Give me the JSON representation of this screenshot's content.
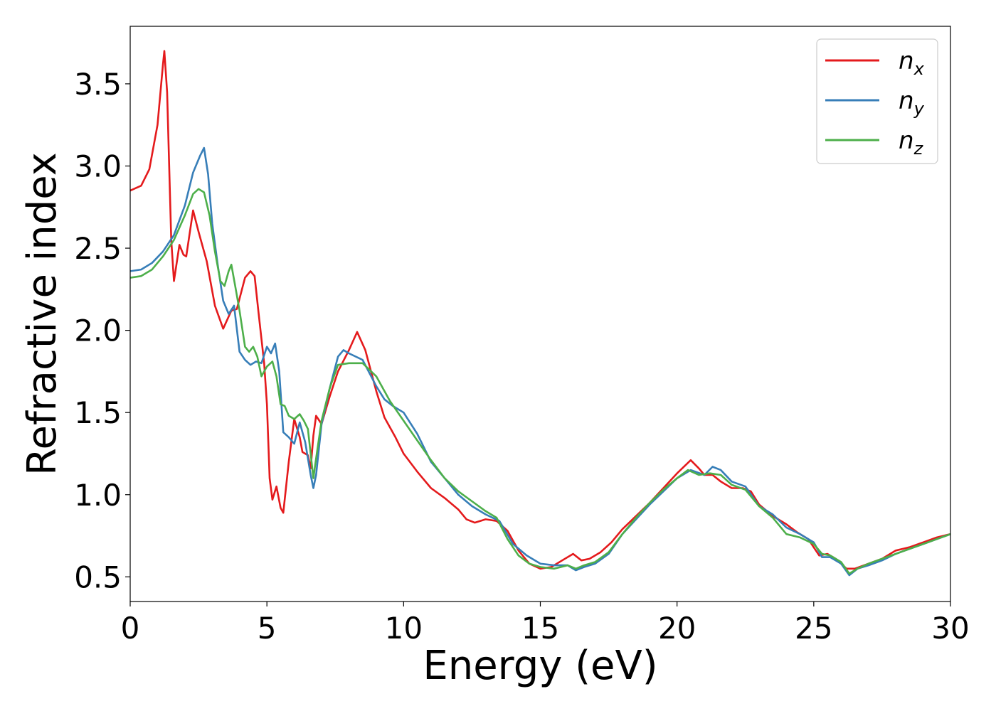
{
  "chart_data": {
    "type": "line",
    "xlabel": "Energy (eV)",
    "ylabel": "Refractive index",
    "xlim": [
      0,
      30
    ],
    "ylim": [
      0.35,
      3.85
    ],
    "xticks": [
      0,
      5,
      10,
      15,
      20,
      25,
      30
    ],
    "xtick_labels": [
      "0",
      "5",
      "10",
      "15",
      "20",
      "25",
      "30"
    ],
    "yticks": [
      0.5,
      1.0,
      1.5,
      2.0,
      2.5,
      3.0,
      3.5
    ],
    "ytick_labels": [
      "0.5",
      "1.0",
      "1.5",
      "2.0",
      "2.5",
      "3.0",
      "3.5"
    ],
    "grid": false,
    "legend_position": "top-right",
    "series": [
      {
        "name": "n",
        "subscript": "x",
        "color": "#e41a1c",
        "points": [
          [
            0,
            2.85
          ],
          [
            0.4,
            2.88
          ],
          [
            0.7,
            2.98
          ],
          [
            1.0,
            3.25
          ],
          [
            1.2,
            3.62
          ],
          [
            1.25,
            3.7
          ],
          [
            1.35,
            3.45
          ],
          [
            1.5,
            2.55
          ],
          [
            1.6,
            2.3
          ],
          [
            1.8,
            2.52
          ],
          [
            1.95,
            2.46
          ],
          [
            2.05,
            2.45
          ],
          [
            2.3,
            2.73
          ],
          [
            2.5,
            2.6
          ],
          [
            2.8,
            2.42
          ],
          [
            3.1,
            2.15
          ],
          [
            3.4,
            2.01
          ],
          [
            3.7,
            2.12
          ],
          [
            3.9,
            2.13
          ],
          [
            4.2,
            2.32
          ],
          [
            4.4,
            2.36
          ],
          [
            4.55,
            2.33
          ],
          [
            4.7,
            2.1
          ],
          [
            4.9,
            1.8
          ],
          [
            5.0,
            1.55
          ],
          [
            5.1,
            1.1
          ],
          [
            5.2,
            0.97
          ],
          [
            5.35,
            1.05
          ],
          [
            5.5,
            0.92
          ],
          [
            5.6,
            0.89
          ],
          [
            5.8,
            1.2
          ],
          [
            6.0,
            1.46
          ],
          [
            6.2,
            1.35
          ],
          [
            6.3,
            1.26
          ],
          [
            6.5,
            1.24
          ],
          [
            6.6,
            1.16
          ],
          [
            6.7,
            1.36
          ],
          [
            6.8,
            1.48
          ],
          [
            7.0,
            1.43
          ],
          [
            7.3,
            1.6
          ],
          [
            7.6,
            1.75
          ],
          [
            8.0,
            1.88
          ],
          [
            8.3,
            1.99
          ],
          [
            8.6,
            1.88
          ],
          [
            9.0,
            1.63
          ],
          [
            9.3,
            1.47
          ],
          [
            9.7,
            1.35
          ],
          [
            10.0,
            1.25
          ],
          [
            10.5,
            1.14
          ],
          [
            11.0,
            1.04
          ],
          [
            11.5,
            0.98
          ],
          [
            12.0,
            0.91
          ],
          [
            12.3,
            0.85
          ],
          [
            12.6,
            0.83
          ],
          [
            13.0,
            0.85
          ],
          [
            13.4,
            0.84
          ],
          [
            13.8,
            0.78
          ],
          [
            14.2,
            0.66
          ],
          [
            14.6,
            0.58
          ],
          [
            15.0,
            0.55
          ],
          [
            15.4,
            0.56
          ],
          [
            15.8,
            0.6
          ],
          [
            16.2,
            0.64
          ],
          [
            16.5,
            0.6
          ],
          [
            16.8,
            0.61
          ],
          [
            17.2,
            0.65
          ],
          [
            17.6,
            0.71
          ],
          [
            18.0,
            0.79
          ],
          [
            18.5,
            0.87
          ],
          [
            19.0,
            0.95
          ],
          [
            19.5,
            1.04
          ],
          [
            20.0,
            1.13
          ],
          [
            20.5,
            1.21
          ],
          [
            20.8,
            1.16
          ],
          [
            21.0,
            1.12
          ],
          [
            21.3,
            1.12
          ],
          [
            21.6,
            1.08
          ],
          [
            22.0,
            1.04
          ],
          [
            22.4,
            1.04
          ],
          [
            22.7,
            1.02
          ],
          [
            23.0,
            0.94
          ],
          [
            23.5,
            0.87
          ],
          [
            24.0,
            0.82
          ],
          [
            24.4,
            0.77
          ],
          [
            24.8,
            0.73
          ],
          [
            25.2,
            0.63
          ],
          [
            25.5,
            0.64
          ],
          [
            25.8,
            0.61
          ],
          [
            26.2,
            0.55
          ],
          [
            26.5,
            0.55
          ],
          [
            27.0,
            0.58
          ],
          [
            27.5,
            0.61
          ],
          [
            28.0,
            0.66
          ],
          [
            28.5,
            0.68
          ],
          [
            29.0,
            0.71
          ],
          [
            29.5,
            0.74
          ],
          [
            30.0,
            0.76
          ]
        ]
      },
      {
        "name": "n",
        "subscript": "y",
        "color": "#377eb8",
        "points": [
          [
            0,
            2.36
          ],
          [
            0.4,
            2.37
          ],
          [
            0.8,
            2.41
          ],
          [
            1.2,
            2.48
          ],
          [
            1.6,
            2.58
          ],
          [
            2.0,
            2.76
          ],
          [
            2.3,
            2.96
          ],
          [
            2.55,
            3.06
          ],
          [
            2.7,
            3.11
          ],
          [
            2.85,
            2.95
          ],
          [
            3.0,
            2.65
          ],
          [
            3.2,
            2.4
          ],
          [
            3.4,
            2.18
          ],
          [
            3.6,
            2.1
          ],
          [
            3.8,
            2.15
          ],
          [
            4.0,
            1.87
          ],
          [
            4.2,
            1.82
          ],
          [
            4.4,
            1.79
          ],
          [
            4.6,
            1.81
          ],
          [
            4.8,
            1.8
          ],
          [
            5.0,
            1.9
          ],
          [
            5.15,
            1.86
          ],
          [
            5.3,
            1.92
          ],
          [
            5.45,
            1.75
          ],
          [
            5.6,
            1.38
          ],
          [
            5.8,
            1.35
          ],
          [
            6.0,
            1.31
          ],
          [
            6.2,
            1.44
          ],
          [
            6.4,
            1.32
          ],
          [
            6.6,
            1.12
          ],
          [
            6.7,
            1.04
          ],
          [
            6.8,
            1.12
          ],
          [
            7.0,
            1.43
          ],
          [
            7.3,
            1.65
          ],
          [
            7.6,
            1.84
          ],
          [
            7.8,
            1.88
          ],
          [
            8.0,
            1.86
          ],
          [
            8.5,
            1.82
          ],
          [
            9.0,
            1.66
          ],
          [
            9.3,
            1.58
          ],
          [
            9.6,
            1.54
          ],
          [
            10.0,
            1.5
          ],
          [
            10.5,
            1.37
          ],
          [
            11.0,
            1.2
          ],
          [
            11.5,
            1.1
          ],
          [
            12.0,
            1.0
          ],
          [
            12.5,
            0.93
          ],
          [
            13.0,
            0.88
          ],
          [
            13.5,
            0.84
          ],
          [
            14.0,
            0.7
          ],
          [
            14.5,
            0.63
          ],
          [
            15.0,
            0.58
          ],
          [
            15.5,
            0.57
          ],
          [
            16.0,
            0.57
          ],
          [
            16.3,
            0.54
          ],
          [
            16.6,
            0.56
          ],
          [
            17.0,
            0.58
          ],
          [
            17.5,
            0.64
          ],
          [
            18.0,
            0.76
          ],
          [
            18.5,
            0.85
          ],
          [
            19.0,
            0.94
          ],
          [
            19.5,
            1.02
          ],
          [
            20.0,
            1.1
          ],
          [
            20.5,
            1.15
          ],
          [
            21.0,
            1.12
          ],
          [
            21.3,
            1.17
          ],
          [
            21.6,
            1.15
          ],
          [
            22.0,
            1.08
          ],
          [
            22.5,
            1.05
          ],
          [
            23.0,
            0.93
          ],
          [
            23.5,
            0.88
          ],
          [
            24.0,
            0.8
          ],
          [
            24.5,
            0.76
          ],
          [
            25.0,
            0.71
          ],
          [
            25.3,
            0.62
          ],
          [
            25.6,
            0.62
          ],
          [
            26.0,
            0.58
          ],
          [
            26.3,
            0.51
          ],
          [
            26.6,
            0.55
          ],
          [
            27.0,
            0.57
          ],
          [
            27.5,
            0.6
          ],
          [
            28.0,
            0.64
          ],
          [
            28.5,
            0.67
          ],
          [
            29.0,
            0.7
          ],
          [
            29.5,
            0.73
          ],
          [
            30.0,
            0.76
          ]
        ]
      },
      {
        "name": "n",
        "subscript": "z",
        "color": "#4daf4a",
        "points": [
          [
            0,
            2.32
          ],
          [
            0.4,
            2.33
          ],
          [
            0.8,
            2.37
          ],
          [
            1.2,
            2.45
          ],
          [
            1.6,
            2.55
          ],
          [
            2.0,
            2.7
          ],
          [
            2.3,
            2.83
          ],
          [
            2.5,
            2.86
          ],
          [
            2.7,
            2.84
          ],
          [
            2.9,
            2.7
          ],
          [
            3.1,
            2.48
          ],
          [
            3.3,
            2.3
          ],
          [
            3.45,
            2.27
          ],
          [
            3.6,
            2.36
          ],
          [
            3.7,
            2.4
          ],
          [
            3.85,
            2.26
          ],
          [
            4.0,
            2.12
          ],
          [
            4.2,
            1.9
          ],
          [
            4.35,
            1.87
          ],
          [
            4.5,
            1.9
          ],
          [
            4.65,
            1.84
          ],
          [
            4.8,
            1.72
          ],
          [
            5.0,
            1.78
          ],
          [
            5.2,
            1.81
          ],
          [
            5.35,
            1.72
          ],
          [
            5.5,
            1.55
          ],
          [
            5.65,
            1.54
          ],
          [
            5.8,
            1.48
          ],
          [
            6.0,
            1.46
          ],
          [
            6.2,
            1.49
          ],
          [
            6.35,
            1.45
          ],
          [
            6.5,
            1.4
          ],
          [
            6.7,
            1.1
          ],
          [
            6.8,
            1.22
          ],
          [
            7.0,
            1.45
          ],
          [
            7.3,
            1.65
          ],
          [
            7.6,
            1.79
          ],
          [
            8.0,
            1.8
          ],
          [
            8.5,
            1.8
          ],
          [
            9.0,
            1.72
          ],
          [
            9.5,
            1.57
          ],
          [
            10.0,
            1.45
          ],
          [
            10.5,
            1.33
          ],
          [
            11.0,
            1.21
          ],
          [
            11.5,
            1.1
          ],
          [
            12.0,
            1.02
          ],
          [
            12.5,
            0.96
          ],
          [
            13.0,
            0.9
          ],
          [
            13.4,
            0.86
          ],
          [
            13.8,
            0.73
          ],
          [
            14.2,
            0.63
          ],
          [
            14.6,
            0.58
          ],
          [
            15.0,
            0.56
          ],
          [
            15.5,
            0.55
          ],
          [
            16.0,
            0.57
          ],
          [
            16.3,
            0.55
          ],
          [
            16.6,
            0.57
          ],
          [
            17.0,
            0.59
          ],
          [
            17.5,
            0.65
          ],
          [
            18.0,
            0.76
          ],
          [
            18.5,
            0.86
          ],
          [
            19.0,
            0.95
          ],
          [
            19.5,
            1.03
          ],
          [
            20.0,
            1.1
          ],
          [
            20.4,
            1.15
          ],
          [
            20.8,
            1.12
          ],
          [
            21.2,
            1.13
          ],
          [
            21.6,
            1.12
          ],
          [
            22.0,
            1.06
          ],
          [
            22.5,
            1.03
          ],
          [
            23.0,
            0.93
          ],
          [
            23.5,
            0.86
          ],
          [
            24.0,
            0.76
          ],
          [
            24.5,
            0.74
          ],
          [
            25.0,
            0.7
          ],
          [
            25.3,
            0.64
          ],
          [
            25.6,
            0.63
          ],
          [
            26.0,
            0.59
          ],
          [
            26.3,
            0.52
          ],
          [
            26.6,
            0.55
          ],
          [
            27.0,
            0.58
          ],
          [
            27.5,
            0.61
          ],
          [
            28.0,
            0.64
          ],
          [
            28.5,
            0.67
          ],
          [
            29.0,
            0.7
          ],
          [
            29.5,
            0.73
          ],
          [
            30.0,
            0.76
          ]
        ]
      }
    ]
  }
}
